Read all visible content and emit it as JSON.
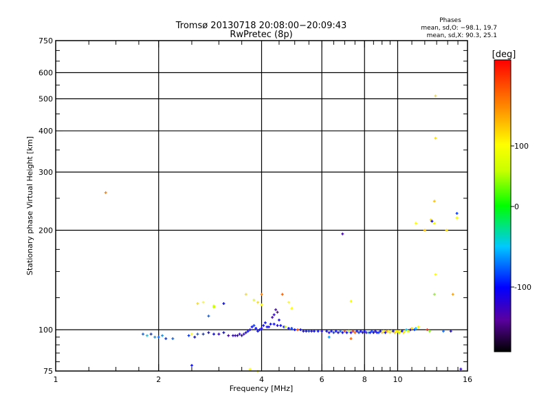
{
  "chart_data": {
    "type": "scatter",
    "title": "Tromsø 20130718 20:08:00−20:09:43",
    "subtitle": "RwPretec (8p)",
    "stats": {
      "heading": "Phases",
      "o_line": "mean, sd,O: −98.1, 19.7",
      "x_line": "mean, sd,X:  90.3, 25.1"
    },
    "xlabel": "Frequency [MHz]",
    "ylabel": "Stationary phase Virtual Height [km]",
    "xscale": "log",
    "yscale": "log",
    "xlim": [
      1,
      16
    ],
    "ylim": [
      75,
      750
    ],
    "xticks": [
      1,
      2,
      4,
      6,
      8,
      10,
      16
    ],
    "yticks": [
      75,
      100,
      200,
      300,
      400,
      500,
      600,
      750
    ],
    "xgrid": [
      2,
      4,
      6,
      8,
      10
    ],
    "ygrid": [
      100,
      200,
      300,
      400,
      500,
      600
    ],
    "colorbar": {
      "label": "[deg]",
      "range": [
        -180,
        180
      ],
      "ticks": [
        100,
        0,
        -100
      ]
    },
    "point_fields": [
      "frequency_MHz",
      "height_km",
      "phase_deg"
    ],
    "points": [
      [
        1.4,
        260,
        140
      ],
      [
        12.9,
        510,
        110
      ],
      [
        12.9,
        380,
        110
      ],
      [
        12.8,
        245,
        120
      ],
      [
        14.9,
        225,
        -90
      ],
      [
        14.9,
        218,
        90
      ],
      [
        12.5,
        215,
        110
      ],
      [
        12.6,
        213,
        -100
      ],
      [
        12.8,
        210,
        90
      ],
      [
        11.3,
        210,
        100
      ],
      [
        12.0,
        200,
        120
      ],
      [
        13.9,
        200,
        110
      ],
      [
        6.9,
        195,
        -130
      ],
      [
        12.9,
        147,
        100
      ],
      [
        12.8,
        128,
        40
      ],
      [
        14.5,
        128,
        130
      ],
      [
        7.3,
        122,
        90
      ],
      [
        4.0,
        128,
        140
      ],
      [
        4.6,
        128,
        150
      ],
      [
        3.6,
        128,
        110
      ],
      [
        2.6,
        120,
        110
      ],
      [
        2.7,
        121,
        100
      ],
      [
        2.9,
        118,
        60
      ],
      [
        2.9,
        117,
        60
      ],
      [
        3.1,
        120,
        -100
      ],
      [
        3.8,
        123,
        80
      ],
      [
        4.9,
        116,
        100
      ],
      [
        4.8,
        121,
        100
      ],
      [
        2.8,
        110,
        -80
      ],
      [
        4.0,
        119,
        100
      ],
      [
        3.9,
        121,
        110
      ],
      [
        1.8,
        97,
        -80
      ],
      [
        1.85,
        96,
        -60
      ],
      [
        1.9,
        97,
        -90
      ],
      [
        1.95,
        95,
        -70
      ],
      [
        2.0,
        95,
        -80
      ],
      [
        2.05,
        96,
        -70
      ],
      [
        2.1,
        94,
        -90
      ],
      [
        2.2,
        94,
        -80
      ],
      [
        2.45,
        96,
        -90
      ],
      [
        2.5,
        97,
        100
      ],
      [
        2.55,
        95,
        -100
      ],
      [
        2.6,
        97,
        -80
      ],
      [
        2.7,
        97,
        -90
      ],
      [
        2.8,
        98,
        -110
      ],
      [
        2.9,
        97,
        -100
      ],
      [
        3.0,
        97,
        -120
      ],
      [
        3.1,
        98,
        -100
      ],
      [
        3.2,
        96,
        -130
      ],
      [
        3.3,
        96,
        -120
      ],
      [
        3.35,
        96,
        -125
      ],
      [
        3.4,
        96,
        -120
      ],
      [
        3.45,
        97,
        -120
      ],
      [
        3.5,
        96,
        -115
      ],
      [
        3.55,
        97,
        -120
      ],
      [
        3.6,
        98,
        -110
      ],
      [
        3.65,
        99,
        -100
      ],
      [
        3.7,
        100,
        -110
      ],
      [
        3.75,
        102,
        -100
      ],
      [
        3.8,
        103,
        -90
      ],
      [
        3.85,
        101,
        -100
      ],
      [
        3.9,
        99,
        -100
      ],
      [
        3.95,
        100,
        -100
      ],
      [
        4.0,
        101,
        -110
      ],
      [
        4.05,
        103,
        -100
      ],
      [
        4.1,
        105,
        -100
      ],
      [
        4.15,
        102,
        -100
      ],
      [
        4.2,
        102,
        -110
      ],
      [
        4.3,
        109,
        -130
      ],
      [
        4.35,
        111,
        -120
      ],
      [
        4.4,
        115,
        -130
      ],
      [
        4.45,
        113,
        -140
      ],
      [
        4.5,
        107,
        -110
      ],
      [
        4.25,
        104,
        -100
      ],
      [
        4.35,
        104,
        -100
      ],
      [
        4.45,
        103,
        -110
      ],
      [
        4.55,
        103,
        -100
      ],
      [
        4.65,
        102,
        -100
      ],
      [
        4.7,
        102,
        60
      ],
      [
        4.8,
        101,
        -100
      ],
      [
        4.9,
        101,
        -90
      ],
      [
        5.0,
        100,
        -100
      ],
      [
        5.1,
        100,
        160
      ],
      [
        5.2,
        100,
        -100
      ],
      [
        5.3,
        99,
        -110
      ],
      [
        5.4,
        99,
        -100
      ],
      [
        5.5,
        99,
        -90
      ],
      [
        5.6,
        99,
        -110
      ],
      [
        5.7,
        99,
        -100
      ],
      [
        5.85,
        99,
        -100
      ],
      [
        6.0,
        99,
        -110
      ],
      [
        6.2,
        99,
        -100
      ],
      [
        6.3,
        98,
        -110
      ],
      [
        6.4,
        99,
        -100
      ],
      [
        6.5,
        98,
        -90
      ],
      [
        6.6,
        99,
        -100
      ],
      [
        6.7,
        98,
        -110
      ],
      [
        6.8,
        99,
        -80
      ],
      [
        6.9,
        98,
        -100
      ],
      [
        7.0,
        99,
        160
      ],
      [
        7.1,
        98,
        -100
      ],
      [
        7.2,
        99,
        60
      ],
      [
        7.3,
        98,
        -110
      ],
      [
        7.4,
        99,
        170
      ],
      [
        7.5,
        98,
        150
      ],
      [
        7.6,
        99,
        -100
      ],
      [
        7.7,
        98,
        -90
      ],
      [
        7.8,
        99,
        -100
      ],
      [
        7.9,
        98,
        -110
      ],
      [
        8.0,
        99,
        -100
      ],
      [
        8.1,
        98,
        -120
      ],
      [
        8.2,
        98,
        -60
      ],
      [
        8.3,
        98,
        -100
      ],
      [
        8.4,
        99,
        -90
      ],
      [
        8.5,
        98,
        -100
      ],
      [
        8.6,
        99,
        -110
      ],
      [
        8.7,
        98,
        -100
      ],
      [
        8.8,
        98,
        -90
      ],
      [
        8.9,
        99,
        -100
      ],
      [
        9.0,
        98,
        120
      ],
      [
        9.1,
        99,
        100
      ],
      [
        9.2,
        98,
        -100
      ],
      [
        9.3,
        99,
        140
      ],
      [
        9.4,
        99,
        100
      ],
      [
        9.5,
        98,
        110
      ],
      [
        9.6,
        99,
        90
      ],
      [
        9.7,
        99,
        -100
      ],
      [
        9.8,
        98,
        120
      ],
      [
        9.9,
        99,
        100
      ],
      [
        10.0,
        99,
        110
      ],
      [
        10.1,
        98,
        60
      ],
      [
        10.2,
        99,
        100
      ],
      [
        10.3,
        99,
        -100
      ],
      [
        10.4,
        98,
        110
      ],
      [
        10.5,
        99,
        90
      ],
      [
        10.6,
        100,
        -60
      ],
      [
        10.7,
        99,
        100
      ],
      [
        10.8,
        99,
        60
      ],
      [
        10.9,
        100,
        -120
      ],
      [
        11.0,
        101,
        110
      ],
      [
        11.2,
        100,
        -90
      ],
      [
        11.3,
        101,
        -60
      ],
      [
        11.5,
        102,
        100
      ],
      [
        12.2,
        100,
        170
      ],
      [
        12.4,
        99,
        40
      ],
      [
        13.6,
        99,
        -80
      ],
      [
        14.3,
        99,
        -110
      ],
      [
        6.3,
        95,
        -70
      ],
      [
        7.3,
        94,
        150
      ],
      [
        2.5,
        78,
        -100
      ],
      [
        3.7,
        76,
        100
      ],
      [
        3.9,
        75,
        90
      ],
      [
        15.3,
        76,
        -120
      ]
    ]
  }
}
